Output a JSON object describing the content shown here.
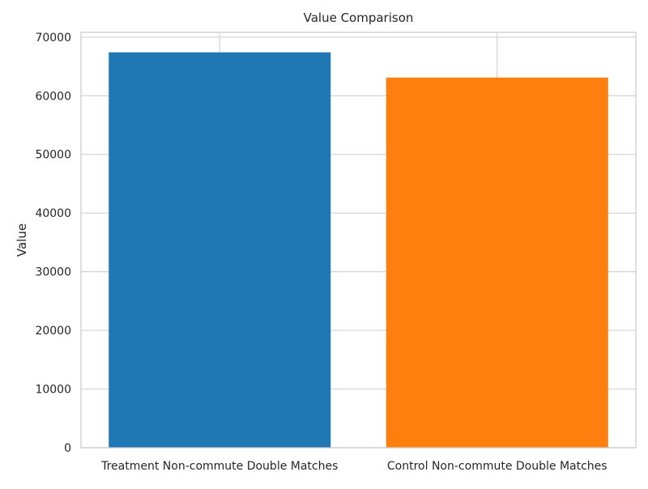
{
  "chart_data": {
    "type": "bar",
    "title": "Value Comparison",
    "xlabel": "",
    "ylabel": "Value",
    "categories": [
      "Treatment Non-commute Double Matches",
      "Control Non-commute Double Matches"
    ],
    "values": [
      67400,
      63100
    ],
    "colors": [
      "#1f77b4",
      "#ff7f0e"
    ],
    "ylim": [
      0,
      70800
    ],
    "yticks": [
      0,
      10000,
      20000,
      30000,
      40000,
      50000,
      60000,
      70000
    ],
    "grid": true,
    "legend": "none"
  }
}
